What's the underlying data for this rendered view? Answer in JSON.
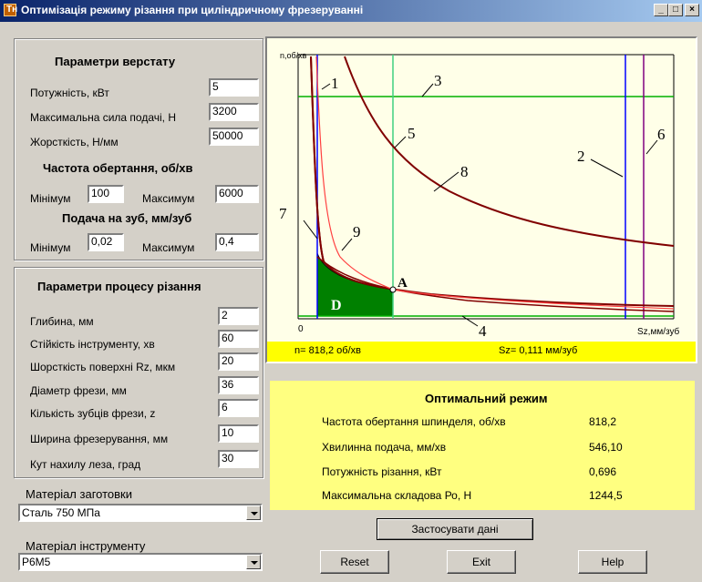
{
  "window": {
    "title": "Оптимізація режиму різання при циліндричному фрезеруванні",
    "app_icon_text": "Тн",
    "min_symbol": "_",
    "max_symbol": "□",
    "close_symbol": "×"
  },
  "machine": {
    "header": "Параметри верстату",
    "power_label": "Потужність, кВт",
    "power_value": "5",
    "force_label": "Максимальна сила подачі, Н",
    "force_value": "3200",
    "stiffness_label": "Жорсткість, Н/мм",
    "stiffness_value": "50000",
    "speed_header": "Частота обертання,  об/хв",
    "speed_min_label": "Мінімум",
    "speed_min_value": "100",
    "speed_max_label": "Максимум",
    "speed_max_value": "6000",
    "feed_header": "Подача на зуб, мм/зуб",
    "feed_min_label": "Мінімум",
    "feed_min_value": "0,02",
    "feed_max_label": "Максимум",
    "feed_max_value": "0,4"
  },
  "process": {
    "header": "Параметри процесу різання",
    "fields": [
      {
        "label": "Глибина, мм",
        "value": "2"
      },
      {
        "label": "Стійкість інструменту, хв",
        "value": "60"
      },
      {
        "label": "Шорсткість поверхні Rz, мкм",
        "value": "20"
      },
      {
        "label": "Діаметр фрези, мм",
        "value": "36"
      },
      {
        "label": "Кількість зубців фрези, z",
        "value": "6"
      },
      {
        "label": "Ширина фрезерування, мм",
        "value": "10"
      },
      {
        "label": "Кут нахилу леза, град",
        "value": "30"
      }
    ]
  },
  "material_workpiece": {
    "label": "Матеріал заготовки",
    "value": "Сталь 750 МПа"
  },
  "material_tool": {
    "label": "Матеріал інструменту",
    "value": "Р6М5"
  },
  "plot": {
    "y_axis_label": "n,об/хв",
    "x_axis_label": "Sz,мм/зуб",
    "origin_label": "0",
    "point_label": "A",
    "region_label": "D",
    "curve_numbers": [
      "1",
      "2",
      "3",
      "4",
      "5",
      "6",
      "7",
      "8",
      "9"
    ],
    "colors": {
      "blue": "#0000ff",
      "purple": "#800080",
      "green": "#00c000",
      "cyan_green": "#40d080",
      "maroon": "#800000",
      "red": "#ff4040",
      "region": "#008000"
    }
  },
  "status": {
    "n_text": "n= 818,2  об/хв",
    "sz_text": "Sz=  0,111 мм/зуб"
  },
  "results": {
    "header": "Оптимальний режим",
    "rows": [
      {
        "label": "Частота обертання шпинделя, об/хв",
        "value": "818,2"
      },
      {
        "label": "Хвилинна подача, мм/хв",
        "value": "546,10"
      },
      {
        "label": "Потужність різання, кВт",
        "value": "0,696"
      },
      {
        "label": "Максимальна складова Ро, Н",
        "value": "1244,5"
      }
    ]
  },
  "buttons": {
    "apply": "Застосувати дані",
    "reset": "Reset",
    "exit": "Exit",
    "help": "Help"
  }
}
